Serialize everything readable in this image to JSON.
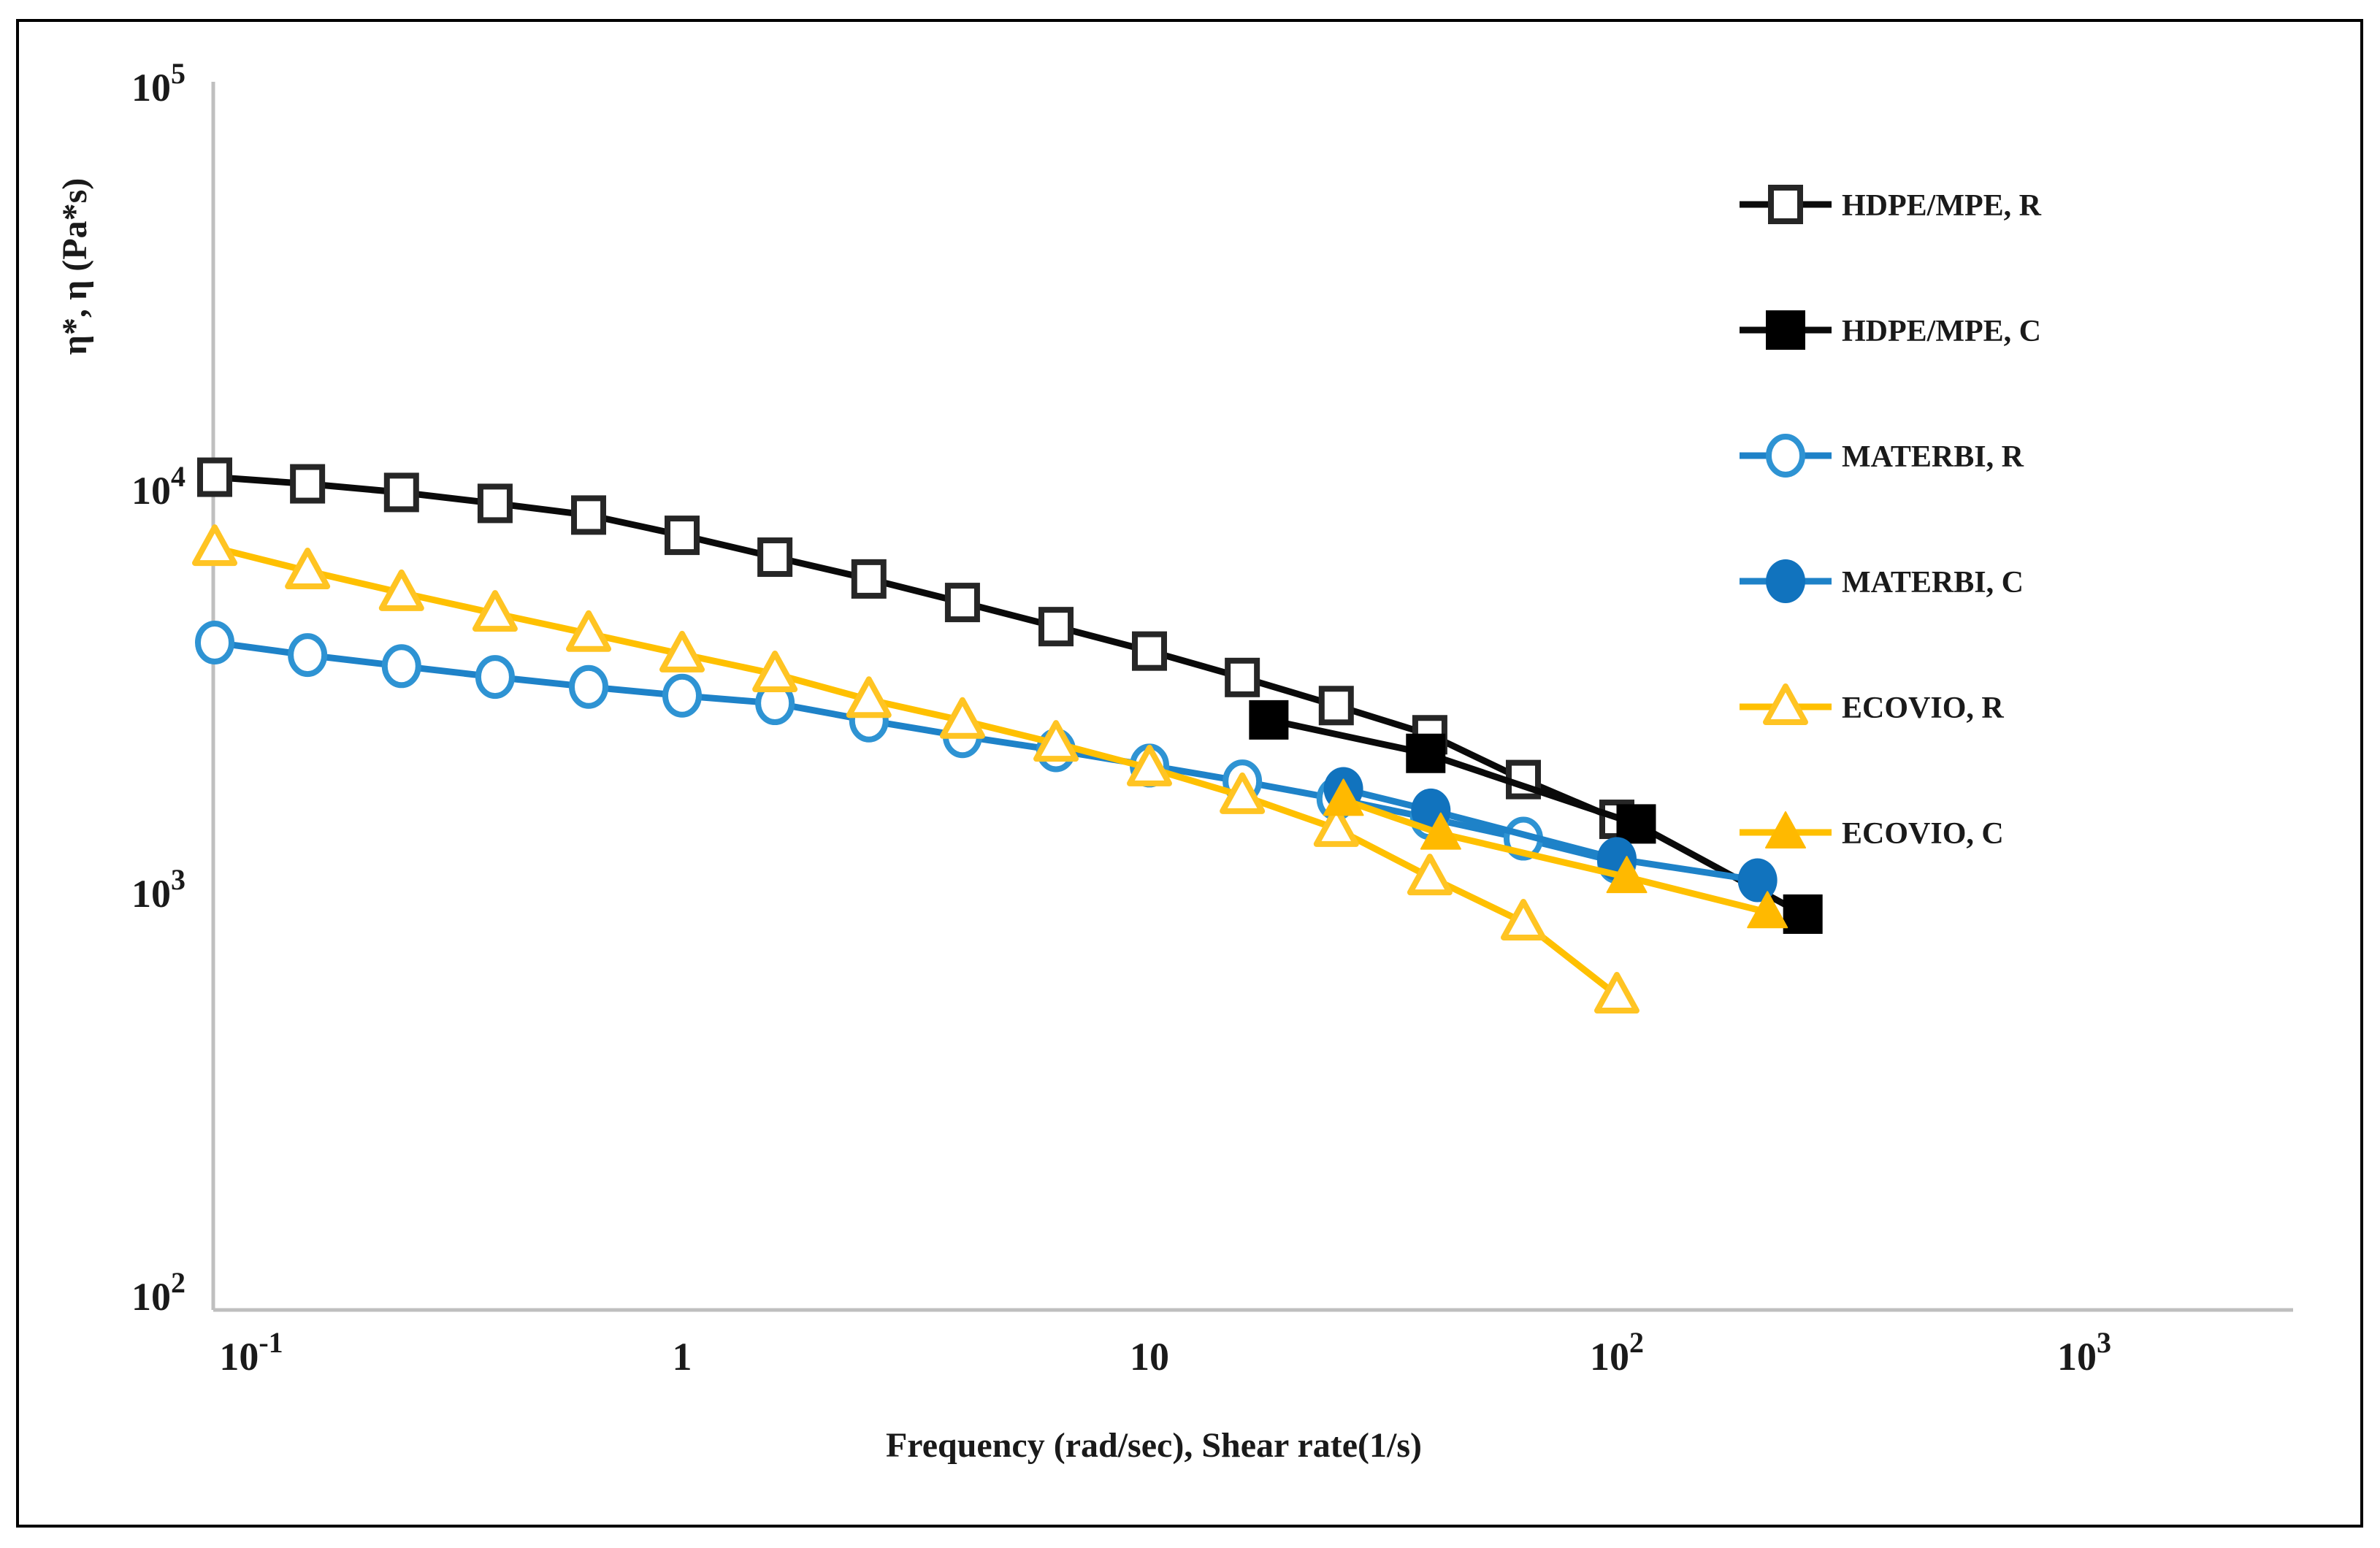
{
  "figure": {
    "background": "#ffffff",
    "border_color": "#000000",
    "axis_line_color": "#BFBFBF",
    "text_color": "#1a1a1a"
  },
  "chart_data": {
    "type": "line",
    "x_scale": "log",
    "y_scale": "log",
    "title": "",
    "xlabel": "Frequency (rad/sec), Shear rate(1/s)",
    "ylabel": "η*, η (Pa*s)",
    "xlim": [
      0.1,
      1000
    ],
    "ylim": [
      100,
      100000
    ],
    "grid": false,
    "legend_position": "right",
    "x_ticks": [
      {
        "base": "10",
        "sup": "-1",
        "value": 0.1
      },
      {
        "base": "1",
        "sup": "",
        "value": 1
      },
      {
        "base": "10",
        "sup": "",
        "value": 10
      },
      {
        "base": "10",
        "sup": "2",
        "value": 100
      },
      {
        "base": "10",
        "sup": "3",
        "value": 1000
      }
    ],
    "y_ticks": [
      {
        "base": "10",
        "sup": "2",
        "value": 100
      },
      {
        "base": "10",
        "sup": "3",
        "value": 1000
      },
      {
        "base": "10",
        "sup": "4",
        "value": 10000
      },
      {
        "base": "10",
        "sup": "5",
        "value": 100000
      }
    ],
    "series": [
      {
        "name": "HDPE/MPE, R",
        "marker": "square-open",
        "line_color": "#0a0a0a",
        "marker_color": "#262626",
        "x": [
          0.1,
          0.158,
          0.251,
          0.398,
          0.631,
          1,
          1.58,
          2.51,
          3.98,
          6.31,
          10,
          15.8,
          25.1,
          39.8,
          63.1,
          100
        ],
        "y": [
          10800,
          10400,
          9900,
          9300,
          8700,
          7750,
          6840,
          6040,
          5280,
          4600,
          4000,
          3440,
          2930,
          2480,
          1920,
          1530
        ]
      },
      {
        "name": "HDPE/MPE, C",
        "marker": "square-filled",
        "line_color": "#0a0a0a",
        "marker_color": "#000000",
        "x": [
          18,
          39,
          110,
          250
        ],
        "y": [
          2700,
          2230,
          1490,
          890
        ]
      },
      {
        "name": "MATERBI, R",
        "marker": "circle-open",
        "line_color": "#1E82C8",
        "marker_color": "#2E93D3",
        "x": [
          0.1,
          0.158,
          0.251,
          0.398,
          0.631,
          1,
          1.58,
          2.51,
          3.98,
          6.31,
          10,
          15.8,
          25.1,
          39.8,
          63.1,
          100
        ],
        "y": [
          4200,
          3910,
          3670,
          3450,
          3260,
          3100,
          2970,
          2690,
          2460,
          2270,
          2080,
          1900,
          1720,
          1540,
          1370,
          1200
        ]
      },
      {
        "name": "MATERBI, C",
        "marker": "circle-filled",
        "line_color": "#1E82C8",
        "marker_color": "#1173BE",
        "x": [
          26,
          40,
          100,
          200
        ],
        "y": [
          1820,
          1610,
          1220,
          1080
        ]
      },
      {
        "name": "ECOVIO, R",
        "marker": "triangle-open",
        "line_color": "#FFC000",
        "marker_color": "#FFC423",
        "x": [
          0.1,
          0.158,
          0.251,
          0.398,
          0.631,
          1,
          1.58,
          2.51,
          3.98,
          6.31,
          10,
          15.8,
          25.1,
          39.8,
          63.1,
          100
        ],
        "y": [
          7220,
          6320,
          5580,
          4960,
          4420,
          3930,
          3510,
          3030,
          2690,
          2360,
          2050,
          1750,
          1450,
          1100,
          850,
          560
        ]
      },
      {
        "name": "ECOVIO, C",
        "marker": "triangle-filled",
        "line_color": "#FFC000",
        "marker_color": "#FFB900",
        "x": [
          26,
          42,
          105,
          210
        ],
        "y": [
          1710,
          1410,
          1100,
          900
        ]
      }
    ]
  }
}
